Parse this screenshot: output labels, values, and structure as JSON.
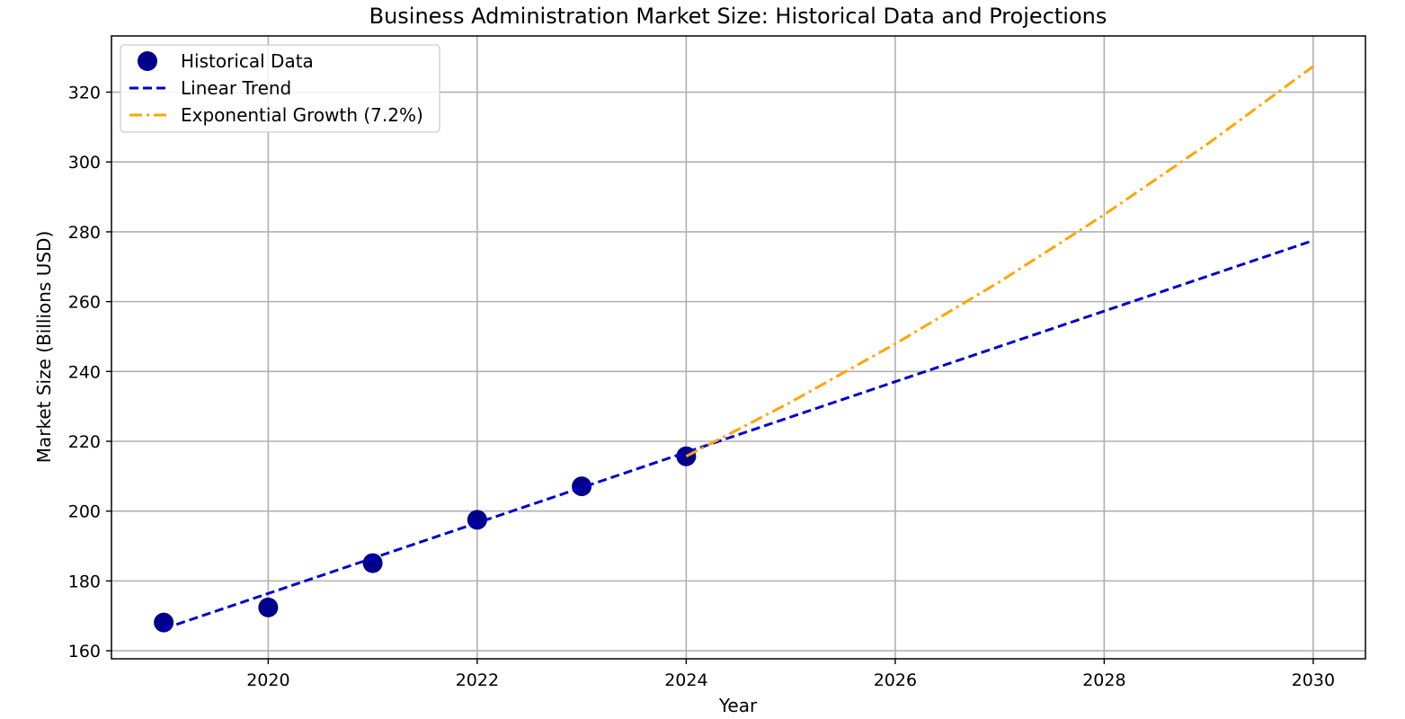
{
  "chart_data": {
    "type": "line",
    "title": "Business Administration Market Size: Historical Data and Projections",
    "xlabel": "Year",
    "ylabel": "Market Size (Billions USD)",
    "xlim": [
      2018.5,
      2030.5
    ],
    "ylim": [
      157.7,
      336.1
    ],
    "x_ticks": [
      2020,
      2022,
      2024,
      2026,
      2028,
      2030
    ],
    "y_ticks": [
      160,
      180,
      200,
      220,
      240,
      260,
      280,
      300,
      320
    ],
    "grid": true,
    "legend_position": "top-left",
    "series": [
      {
        "name": "Historical Data",
        "kind": "scatter",
        "color": "#00008b",
        "x": [
          2019,
          2020,
          2021,
          2022,
          2023,
          2024
        ],
        "y": [
          168.1,
          172.4,
          185.1,
          197.5,
          207.1,
          215.7
        ]
      },
      {
        "name": "Linear Trend",
        "kind": "line",
        "style": "dashed",
        "color": "#0000cd",
        "x": [
          2019,
          2030
        ],
        "y": [
          166.3,
          277.5
        ]
      },
      {
        "name": "Exponential Growth (7.2%)",
        "kind": "line",
        "style": "dashdot",
        "color": "#ffa500",
        "growth_rate": 0.072,
        "x": [
          2024,
          2025,
          2026,
          2027,
          2028,
          2029,
          2030
        ],
        "y": [
          215.7,
          231.2,
          247.9,
          265.7,
          284.9,
          305.4,
          327.4
        ]
      }
    ]
  }
}
